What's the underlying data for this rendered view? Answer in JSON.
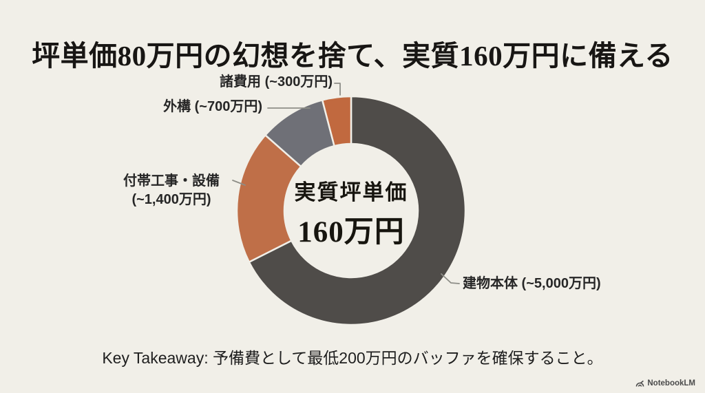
{
  "slide": {
    "title": "坪単価80万円の幻想を捨て、実質160万円に備える",
    "takeaway": "Key Takeaway: 予備費として最低200万円のバッファを確保すること。",
    "watermark": "NotebookLM",
    "background_color": "#f1efe8"
  },
  "chart_data": {
    "type": "pie",
    "subtype": "donut",
    "direction": "clockwise",
    "start_angle_deg": 0,
    "unit": "万円",
    "center_label": {
      "line1": "実質坪単価",
      "line2": "160万円"
    },
    "segments": [
      {
        "name": "建物本体",
        "callout": "建物本体 (~5,000万円)",
        "value": 5000,
        "color": "#4f4c49"
      },
      {
        "name": "付帯工事・設備",
        "callout_line1": "付帯工事・設備",
        "callout_line2": "(~1,400万円)",
        "value": 1400,
        "color": "#bf6f48"
      },
      {
        "name": "外構",
        "callout": "外構 (~700万円)",
        "value": 700,
        "color": "#6f7077"
      },
      {
        "name": "諸費用",
        "callout": "諸費用 (~300万円)",
        "value": 300,
        "color": "#c1693f"
      }
    ],
    "legend_position": "callouts",
    "connector_color": "#8d8d87"
  }
}
